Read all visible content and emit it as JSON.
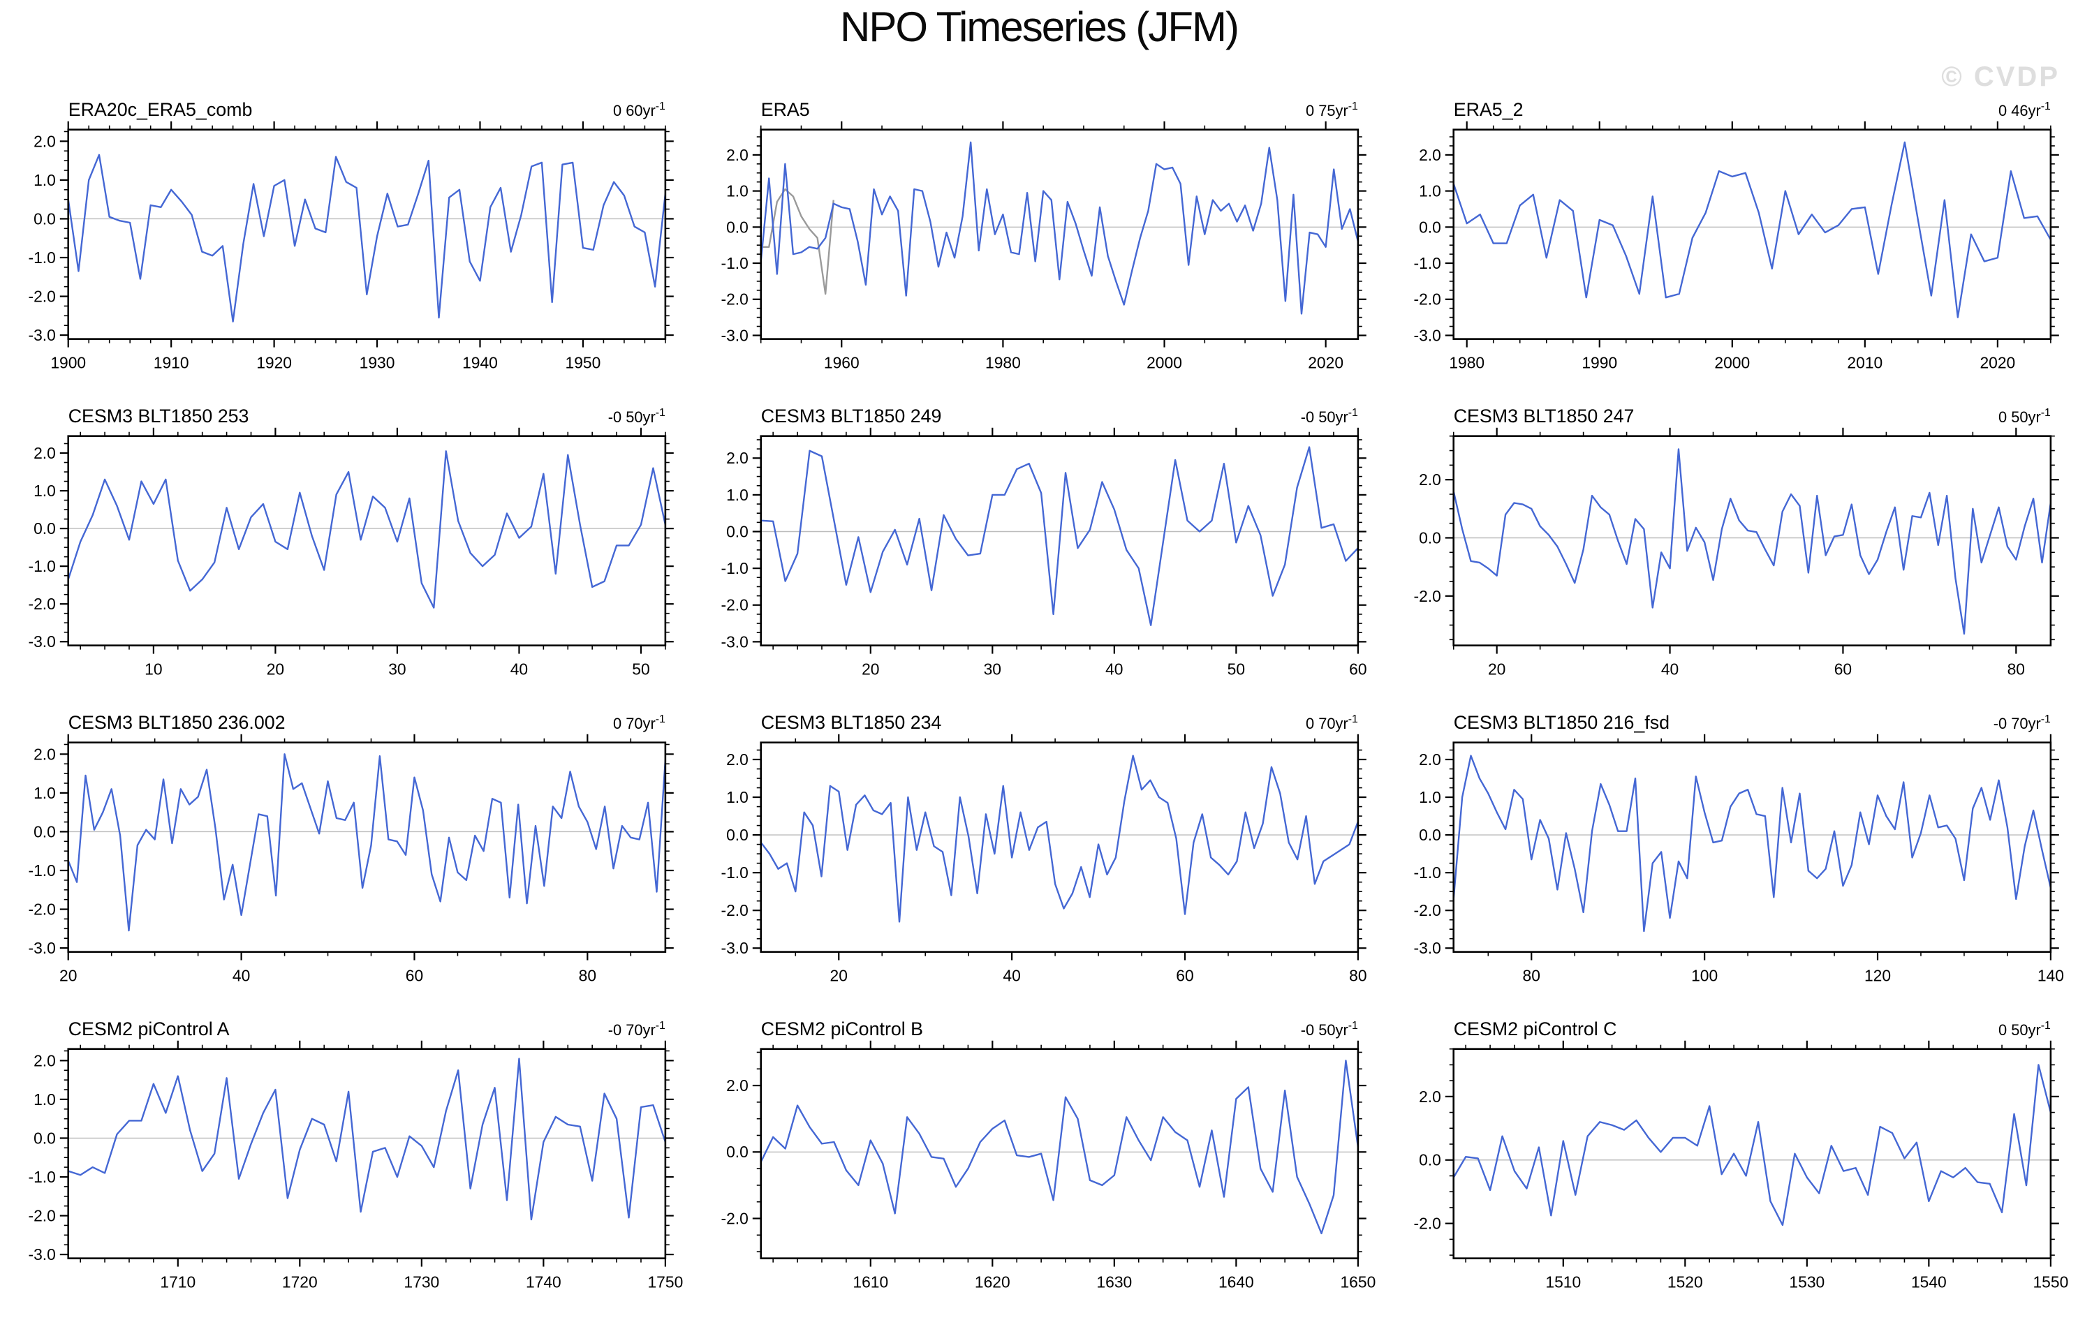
{
  "page": {
    "title": "NPO Timeseries (JFM)",
    "watermark": "© CVDP"
  },
  "style": {
    "line_color": "#4467d4",
    "overlap_line_color": "#9a9a9a",
    "zero_line_color": "#bcbcbc",
    "frame_color": "#000000",
    "text_color": "#000000",
    "watermark_color": "#dedede"
  },
  "chart_data": [
    {
      "type": "line",
      "title": "ERA20c_ERA5_comb",
      "trend": {
        "base": "0 60yr",
        "sup": "-1"
      },
      "xlim": [
        1900,
        1958
      ],
      "x_start": 1900,
      "x_step": 1,
      "xticks": [
        1900,
        1910,
        1920,
        1930,
        1940,
        1950
      ],
      "x_minor_step": 2,
      "ylim": [
        -3.1,
        2.3
      ],
      "yticks": [
        2,
        1,
        0,
        -1,
        -2,
        -3
      ],
      "y_minor_step": 0.25,
      "values": [
        0.5,
        -1.35,
        1.0,
        1.65,
        0.05,
        -0.05,
        -0.1,
        -1.55,
        0.35,
        0.3,
        0.75,
        0.45,
        0.1,
        -0.85,
        -0.95,
        -0.7,
        -2.65,
        -0.65,
        0.9,
        -0.45,
        0.85,
        1.0,
        -0.7,
        0.5,
        -0.25,
        -0.35,
        1.6,
        0.95,
        0.8,
        -1.95,
        -0.45,
        0.65,
        -0.2,
        -0.15,
        0.65,
        1.5,
        -2.55,
        0.55,
        0.75,
        -1.1,
        -1.6,
        0.3,
        0.8,
        -0.85,
        0.1,
        1.35,
        1.45,
        -2.15,
        1.4,
        1.45,
        -0.75,
        -0.8,
        0.35,
        0.95,
        0.6,
        -0.2,
        -0.35,
        -1.75,
        0.65
      ]
    },
    {
      "type": "line",
      "title": "ERA5",
      "trend": {
        "base": "0 75yr",
        "sup": "-1"
      },
      "xlim": [
        1950,
        2024
      ],
      "x_start": 1950,
      "x_step": 1,
      "xticks": [
        1960,
        1980,
        2000,
        2020
      ],
      "x_minor_step": 5,
      "ylim": [
        -3.1,
        2.7
      ],
      "yticks": [
        2,
        1,
        0,
        -1,
        -2,
        -3
      ],
      "y_minor_step": 0.25,
      "values": [
        -0.95,
        1.35,
        -1.3,
        1.75,
        -0.75,
        -0.7,
        -0.55,
        -0.6,
        -0.3,
        0.65,
        0.55,
        0.5,
        -0.4,
        -1.6,
        1.05,
        0.35,
        0.85,
        0.45,
        -1.9,
        1.05,
        1.0,
        0.15,
        -1.1,
        -0.15,
        -0.85,
        0.3,
        2.35,
        -0.65,
        1.05,
        -0.2,
        0.35,
        -0.7,
        -0.75,
        0.95,
        -0.95,
        1.0,
        0.75,
        -1.45,
        0.7,
        0.1,
        -0.65,
        -1.35,
        0.55,
        -0.8,
        -1.5,
        -2.15,
        -1.2,
        -0.3,
        0.45,
        1.75,
        1.6,
        1.65,
        1.2,
        -1.05,
        0.85,
        -0.2,
        0.75,
        0.45,
        0.65,
        0.15,
        0.6,
        -0.1,
        0.65,
        2.2,
        0.75,
        -2.05,
        0.9,
        -2.4,
        -0.15,
        -0.2,
        -0.55,
        1.6,
        -0.05,
        0.5,
        -0.4
      ],
      "overlap_series": {
        "x_start": 1950,
        "values": [
          -0.55,
          -0.55,
          0.7,
          1.05,
          0.85,
          0.3,
          -0.05,
          -0.3,
          -1.85,
          0.75
        ]
      }
    },
    {
      "type": "line",
      "title": "ERA5_2",
      "trend": {
        "base": "0 46yr",
        "sup": "-1"
      },
      "xlim": [
        1979,
        2024
      ],
      "x_start": 1979,
      "x_step": 1,
      "xticks": [
        1980,
        1990,
        2000,
        2010,
        2020
      ],
      "x_minor_step": 2,
      "ylim": [
        -3.1,
        2.7
      ],
      "yticks": [
        2,
        1,
        0,
        -1,
        -2,
        -3
      ],
      "y_minor_step": 0.25,
      "values": [
        1.2,
        0.1,
        0.35,
        -0.45,
        -0.45,
        0.6,
        0.9,
        -0.85,
        0.75,
        0.45,
        -1.95,
        0.2,
        0.05,
        -0.8,
        -1.85,
        0.85,
        -1.95,
        -1.85,
        -0.3,
        0.4,
        1.55,
        1.4,
        1.5,
        0.4,
        -1.15,
        1.0,
        -0.2,
        0.35,
        -0.15,
        0.05,
        0.5,
        0.55,
        -1.3,
        0.6,
        2.35,
        0.2,
        -1.9,
        0.75,
        -2.5,
        -0.2,
        -0.95,
        -0.85,
        1.55,
        0.25,
        0.3,
        -0.35
      ]
    },
    {
      "type": "line",
      "title": "CESM3 BLT1850 253",
      "trend": {
        "base": "-0 50yr",
        "sup": "-1"
      },
      "xlim": [
        3,
        52
      ],
      "x_start": 3,
      "x_step": 1,
      "xticks": [
        10,
        20,
        30,
        40,
        50
      ],
      "x_minor_step": 2,
      "ylim": [
        -3.1,
        2.45
      ],
      "yticks": [
        2,
        1,
        0,
        -1,
        -2,
        -3
      ],
      "y_minor_step": 0.25,
      "values": [
        -1.35,
        -0.35,
        0.35,
        1.3,
        0.6,
        -0.3,
        1.25,
        0.65,
        1.3,
        -0.85,
        -1.65,
        -1.35,
        -0.9,
        0.55,
        -0.55,
        0.3,
        0.65,
        -0.35,
        -0.55,
        0.95,
        -0.2,
        -1.1,
        0.9,
        1.5,
        -0.3,
        0.85,
        0.55,
        -0.35,
        0.8,
        -1.45,
        -2.1,
        2.05,
        0.2,
        -0.65,
        -1.0,
        -0.7,
        0.4,
        -0.25,
        0.05,
        1.45,
        -1.2,
        1.95,
        0.1,
        -1.55,
        -1.4,
        -0.45,
        -0.45,
        0.1,
        1.6,
        0.1
      ]
    },
    {
      "type": "line",
      "title": "CESM3 BLT1850 249",
      "trend": {
        "base": "-0 50yr",
        "sup": "-1"
      },
      "xlim": [
        11,
        60
      ],
      "x_start": 11,
      "x_step": 1,
      "xticks": [
        20,
        30,
        40,
        50,
        60
      ],
      "x_minor_step": 2,
      "ylim": [
        -3.1,
        2.6
      ],
      "yticks": [
        2,
        1,
        0,
        -1,
        -2,
        -3
      ],
      "y_minor_step": 0.25,
      "values": [
        0.3,
        0.28,
        -1.35,
        -0.6,
        2.2,
        2.05,
        0.3,
        -1.45,
        -0.15,
        -1.65,
        -0.55,
        0.05,
        -0.9,
        0.35,
        -1.6,
        0.45,
        -0.2,
        -0.65,
        -0.6,
        1.0,
        1.0,
        1.7,
        1.85,
        1.05,
        -2.25,
        1.6,
        -0.45,
        0.05,
        1.35,
        0.6,
        -0.5,
        -1.0,
        -2.55,
        -0.3,
        1.95,
        0.3,
        0.0,
        0.3,
        1.85,
        -0.3,
        0.7,
        -0.1,
        -1.75,
        -0.9,
        1.2,
        2.3,
        0.1,
        0.2,
        -0.8,
        -0.45
      ]
    },
    {
      "type": "line",
      "title": "CESM3 BLT1850 247",
      "trend": {
        "base": "0 50yr",
        "sup": "-1"
      },
      "xlim": [
        15,
        84
      ],
      "x_start": 15,
      "x_step": 1,
      "xticks": [
        20,
        40,
        60,
        80
      ],
      "x_minor_step": 5,
      "ylim": [
        -3.7,
        3.5
      ],
      "yticks": [
        2,
        0,
        -2
      ],
      "y_minor_step": 0.5,
      "values": [
        1.6,
        0.3,
        -0.8,
        -0.85,
        -1.05,
        -1.3,
        0.8,
        1.2,
        1.15,
        1.0,
        0.4,
        0.1,
        -0.3,
        -0.9,
        -1.55,
        -0.4,
        1.45,
        1.05,
        0.8,
        -0.1,
        -0.9,
        0.65,
        0.3,
        -2.4,
        -0.5,
        -1.05,
        3.05,
        -0.45,
        0.35,
        -0.15,
        -1.45,
        0.3,
        1.35,
        0.6,
        0.25,
        0.2,
        -0.4,
        -0.95,
        0.9,
        1.5,
        1.1,
        -1.2,
        1.45,
        -0.6,
        0.05,
        0.1,
        1.15,
        -0.6,
        -1.25,
        -0.75,
        0.2,
        1.05,
        -1.1,
        0.75,
        0.7,
        1.55,
        -0.25,
        1.45,
        -1.4,
        -3.3,
        1.0,
        -0.85,
        0.1,
        1.05,
        -0.3,
        -0.75,
        0.4,
        1.35,
        -0.85,
        1.2
      ]
    },
    {
      "type": "line",
      "title": "CESM3 BLT1850 236.002",
      "trend": {
        "base": "0 70yr",
        "sup": "-1"
      },
      "xlim": [
        20,
        89
      ],
      "x_start": 20,
      "x_step": 1,
      "xticks": [
        20,
        40,
        60,
        80
      ],
      "x_minor_step": 5,
      "ylim": [
        -3.1,
        2.3
      ],
      "yticks": [
        2,
        1,
        0,
        -1,
        -2,
        -3
      ],
      "y_minor_step": 0.25,
      "values": [
        -0.75,
        -1.3,
        1.45,
        0.05,
        0.5,
        1.1,
        -0.1,
        -2.55,
        -0.35,
        0.05,
        -0.2,
        1.35,
        -0.3,
        1.1,
        0.7,
        0.9,
        1.6,
        0.1,
        -1.75,
        -0.85,
        -2.15,
        -0.85,
        0.45,
        0.4,
        -1.65,
        2.0,
        1.1,
        1.25,
        0.6,
        -0.05,
        1.3,
        0.35,
        0.3,
        0.75,
        -1.45,
        -0.35,
        1.95,
        -0.2,
        -0.25,
        -0.6,
        1.4,
        0.55,
        -1.1,
        -1.8,
        -0.15,
        -1.05,
        -1.25,
        -0.1,
        -0.5,
        0.85,
        0.75,
        -1.7,
        0.7,
        -1.85,
        0.15,
        -1.4,
        0.65,
        0.35,
        1.55,
        0.65,
        0.25,
        -0.45,
        0.65,
        -0.95,
        0.15,
        -0.15,
        -0.2,
        0.75,
        -1.55,
        1.85
      ]
    },
    {
      "type": "line",
      "title": "CESM3 BLT1850 234",
      "trend": {
        "base": "0 70yr",
        "sup": "-1"
      },
      "xlim": [
        11,
        80
      ],
      "x_start": 11,
      "x_step": 1,
      "xticks": [
        20,
        40,
        60,
        80
      ],
      "x_minor_step": 5,
      "ylim": [
        -3.1,
        2.45
      ],
      "yticks": [
        2,
        1,
        0,
        -1,
        -2,
        -3
      ],
      "y_minor_step": 0.25,
      "values": [
        -0.2,
        -0.5,
        -0.9,
        -0.75,
        -1.5,
        0.6,
        0.25,
        -1.1,
        1.3,
        1.15,
        -0.4,
        0.8,
        1.05,
        0.65,
        0.55,
        0.85,
        -2.3,
        1.0,
        -0.4,
        0.6,
        -0.3,
        -0.45,
        -1.6,
        1.0,
        -0.05,
        -1.55,
        0.55,
        -0.5,
        1.3,
        -0.6,
        0.6,
        -0.4,
        0.2,
        0.35,
        -1.3,
        -1.95,
        -1.55,
        -0.85,
        -1.65,
        -0.25,
        -1.05,
        -0.6,
        0.9,
        2.1,
        1.2,
        1.45,
        1.0,
        0.85,
        -0.1,
        -2.1,
        -0.2,
        0.55,
        -0.6,
        -0.8,
        -1.05,
        -0.7,
        0.6,
        -0.35,
        0.3,
        1.8,
        1.1,
        -0.2,
        -0.65,
        0.5,
        -1.3,
        -0.7,
        -0.55,
        -0.4,
        -0.25,
        0.35
      ]
    },
    {
      "type": "line",
      "title": "CESM3 BLT1850 216_fsd",
      "trend": {
        "base": "-0 70yr",
        "sup": "-1"
      },
      "xlim": [
        71,
        140
      ],
      "x_start": 71,
      "x_step": 1,
      "xticks": [
        80,
        100,
        120,
        140
      ],
      "x_minor_step": 5,
      "ylim": [
        -3.1,
        2.45
      ],
      "yticks": [
        2,
        1,
        0,
        -1,
        -2,
        -3
      ],
      "y_minor_step": 0.25,
      "values": [
        -1.7,
        1.0,
        2.1,
        1.5,
        1.1,
        0.6,
        0.15,
        1.2,
        0.95,
        -0.65,
        0.4,
        -0.1,
        -1.45,
        0.05,
        -0.9,
        -2.05,
        0.1,
        1.35,
        0.8,
        0.1,
        0.1,
        1.5,
        -2.55,
        -0.75,
        -0.45,
        -2.2,
        -0.7,
        -1.15,
        1.55,
        0.6,
        -0.2,
        -0.15,
        0.75,
        1.1,
        1.2,
        0.55,
        0.5,
        -1.65,
        1.25,
        -0.2,
        1.1,
        -0.95,
        -1.15,
        -0.9,
        0.1,
        -1.35,
        -0.8,
        0.6,
        -0.25,
        1.05,
        0.5,
        0.15,
        1.4,
        -0.6,
        0.05,
        1.05,
        0.2,
        0.25,
        -0.1,
        -1.2,
        0.7,
        1.25,
        0.4,
        1.45,
        0.2,
        -1.7,
        -0.3,
        0.65,
        -0.4,
        -1.4
      ]
    },
    {
      "type": "line",
      "title": "CESM2 piControl A",
      "trend": {
        "base": "-0 70yr",
        "sup": "-1"
      },
      "xlim": [
        1701,
        1750
      ],
      "x_start": 1701,
      "x_step": 1,
      "xticks": [
        1710,
        1720,
        1730,
        1740,
        1750
      ],
      "x_minor_step": 2,
      "ylim": [
        -3.1,
        2.3
      ],
      "yticks": [
        2,
        1,
        0,
        -1,
        -2,
        -3
      ],
      "y_minor_step": 0.25,
      "values": [
        -0.85,
        -0.95,
        -0.75,
        -0.9,
        0.1,
        0.45,
        0.45,
        1.4,
        0.65,
        1.6,
        0.2,
        -0.85,
        -0.4,
        1.55,
        -1.05,
        -0.15,
        0.65,
        1.25,
        -1.55,
        -0.3,
        0.5,
        0.35,
        -0.6,
        1.2,
        -1.9,
        -0.35,
        -0.25,
        -1.0,
        0.05,
        -0.2,
        -0.75,
        0.7,
        1.75,
        -1.3,
        0.35,
        1.3,
        -1.6,
        2.05,
        -2.1,
        -0.1,
        0.55,
        0.35,
        0.3,
        -1.1,
        1.15,
        0.5,
        -2.05,
        0.8,
        0.85,
        -0.1
      ]
    },
    {
      "type": "line",
      "title": "CESM2 piControl B",
      "trend": {
        "base": "-0 50yr",
        "sup": "-1"
      },
      "xlim": [
        1601,
        1650
      ],
      "x_start": 1601,
      "x_step": 1,
      "xticks": [
        1610,
        1620,
        1630,
        1640,
        1650
      ],
      "x_minor_step": 2,
      "ylim": [
        -3.2,
        3.1
      ],
      "yticks": [
        2,
        0,
        -2
      ],
      "y_minor_step": 0.5,
      "values": [
        -0.3,
        0.45,
        0.1,
        1.4,
        0.75,
        0.25,
        0.3,
        -0.55,
        -1.0,
        0.35,
        -0.35,
        -1.85,
        1.05,
        0.55,
        -0.15,
        -0.2,
        -1.05,
        -0.5,
        0.3,
        0.7,
        0.95,
        -0.1,
        -0.15,
        -0.05,
        -1.45,
        1.65,
        1.0,
        -0.85,
        -1.0,
        -0.7,
        1.05,
        0.35,
        -0.25,
        1.05,
        0.6,
        0.35,
        -1.05,
        0.65,
        -1.35,
        1.6,
        1.95,
        -0.5,
        -1.2,
        1.85,
        -0.75,
        -1.55,
        -2.45,
        -1.3,
        2.75,
        0.15
      ]
    },
    {
      "type": "line",
      "title": "CESM2 piControl C",
      "trend": {
        "base": "0 50yr",
        "sup": "-1"
      },
      "xlim": [
        1501,
        1550
      ],
      "x_start": 1501,
      "x_step": 1,
      "xticks": [
        1510,
        1520,
        1530,
        1540,
        1550
      ],
      "x_minor_step": 2,
      "ylim": [
        -3.1,
        3.5
      ],
      "yticks": [
        2,
        0,
        -2
      ],
      "y_minor_step": 0.5,
      "values": [
        -0.55,
        0.1,
        0.05,
        -0.95,
        0.75,
        -0.35,
        -0.9,
        0.4,
        -1.75,
        0.6,
        -1.1,
        0.75,
        1.2,
        1.1,
        0.95,
        1.25,
        0.7,
        0.25,
        0.7,
        0.7,
        0.45,
        1.7,
        -0.45,
        0.2,
        -0.5,
        1.2,
        -1.3,
        -2.05,
        0.2,
        -0.55,
        -1.05,
        0.45,
        -0.35,
        -0.25,
        -1.1,
        1.05,
        0.85,
        0.05,
        0.55,
        -1.3,
        -0.35,
        -0.55,
        -0.25,
        -0.7,
        -0.75,
        -1.65,
        1.45,
        -0.8,
        3.0,
        1.5
      ]
    }
  ]
}
